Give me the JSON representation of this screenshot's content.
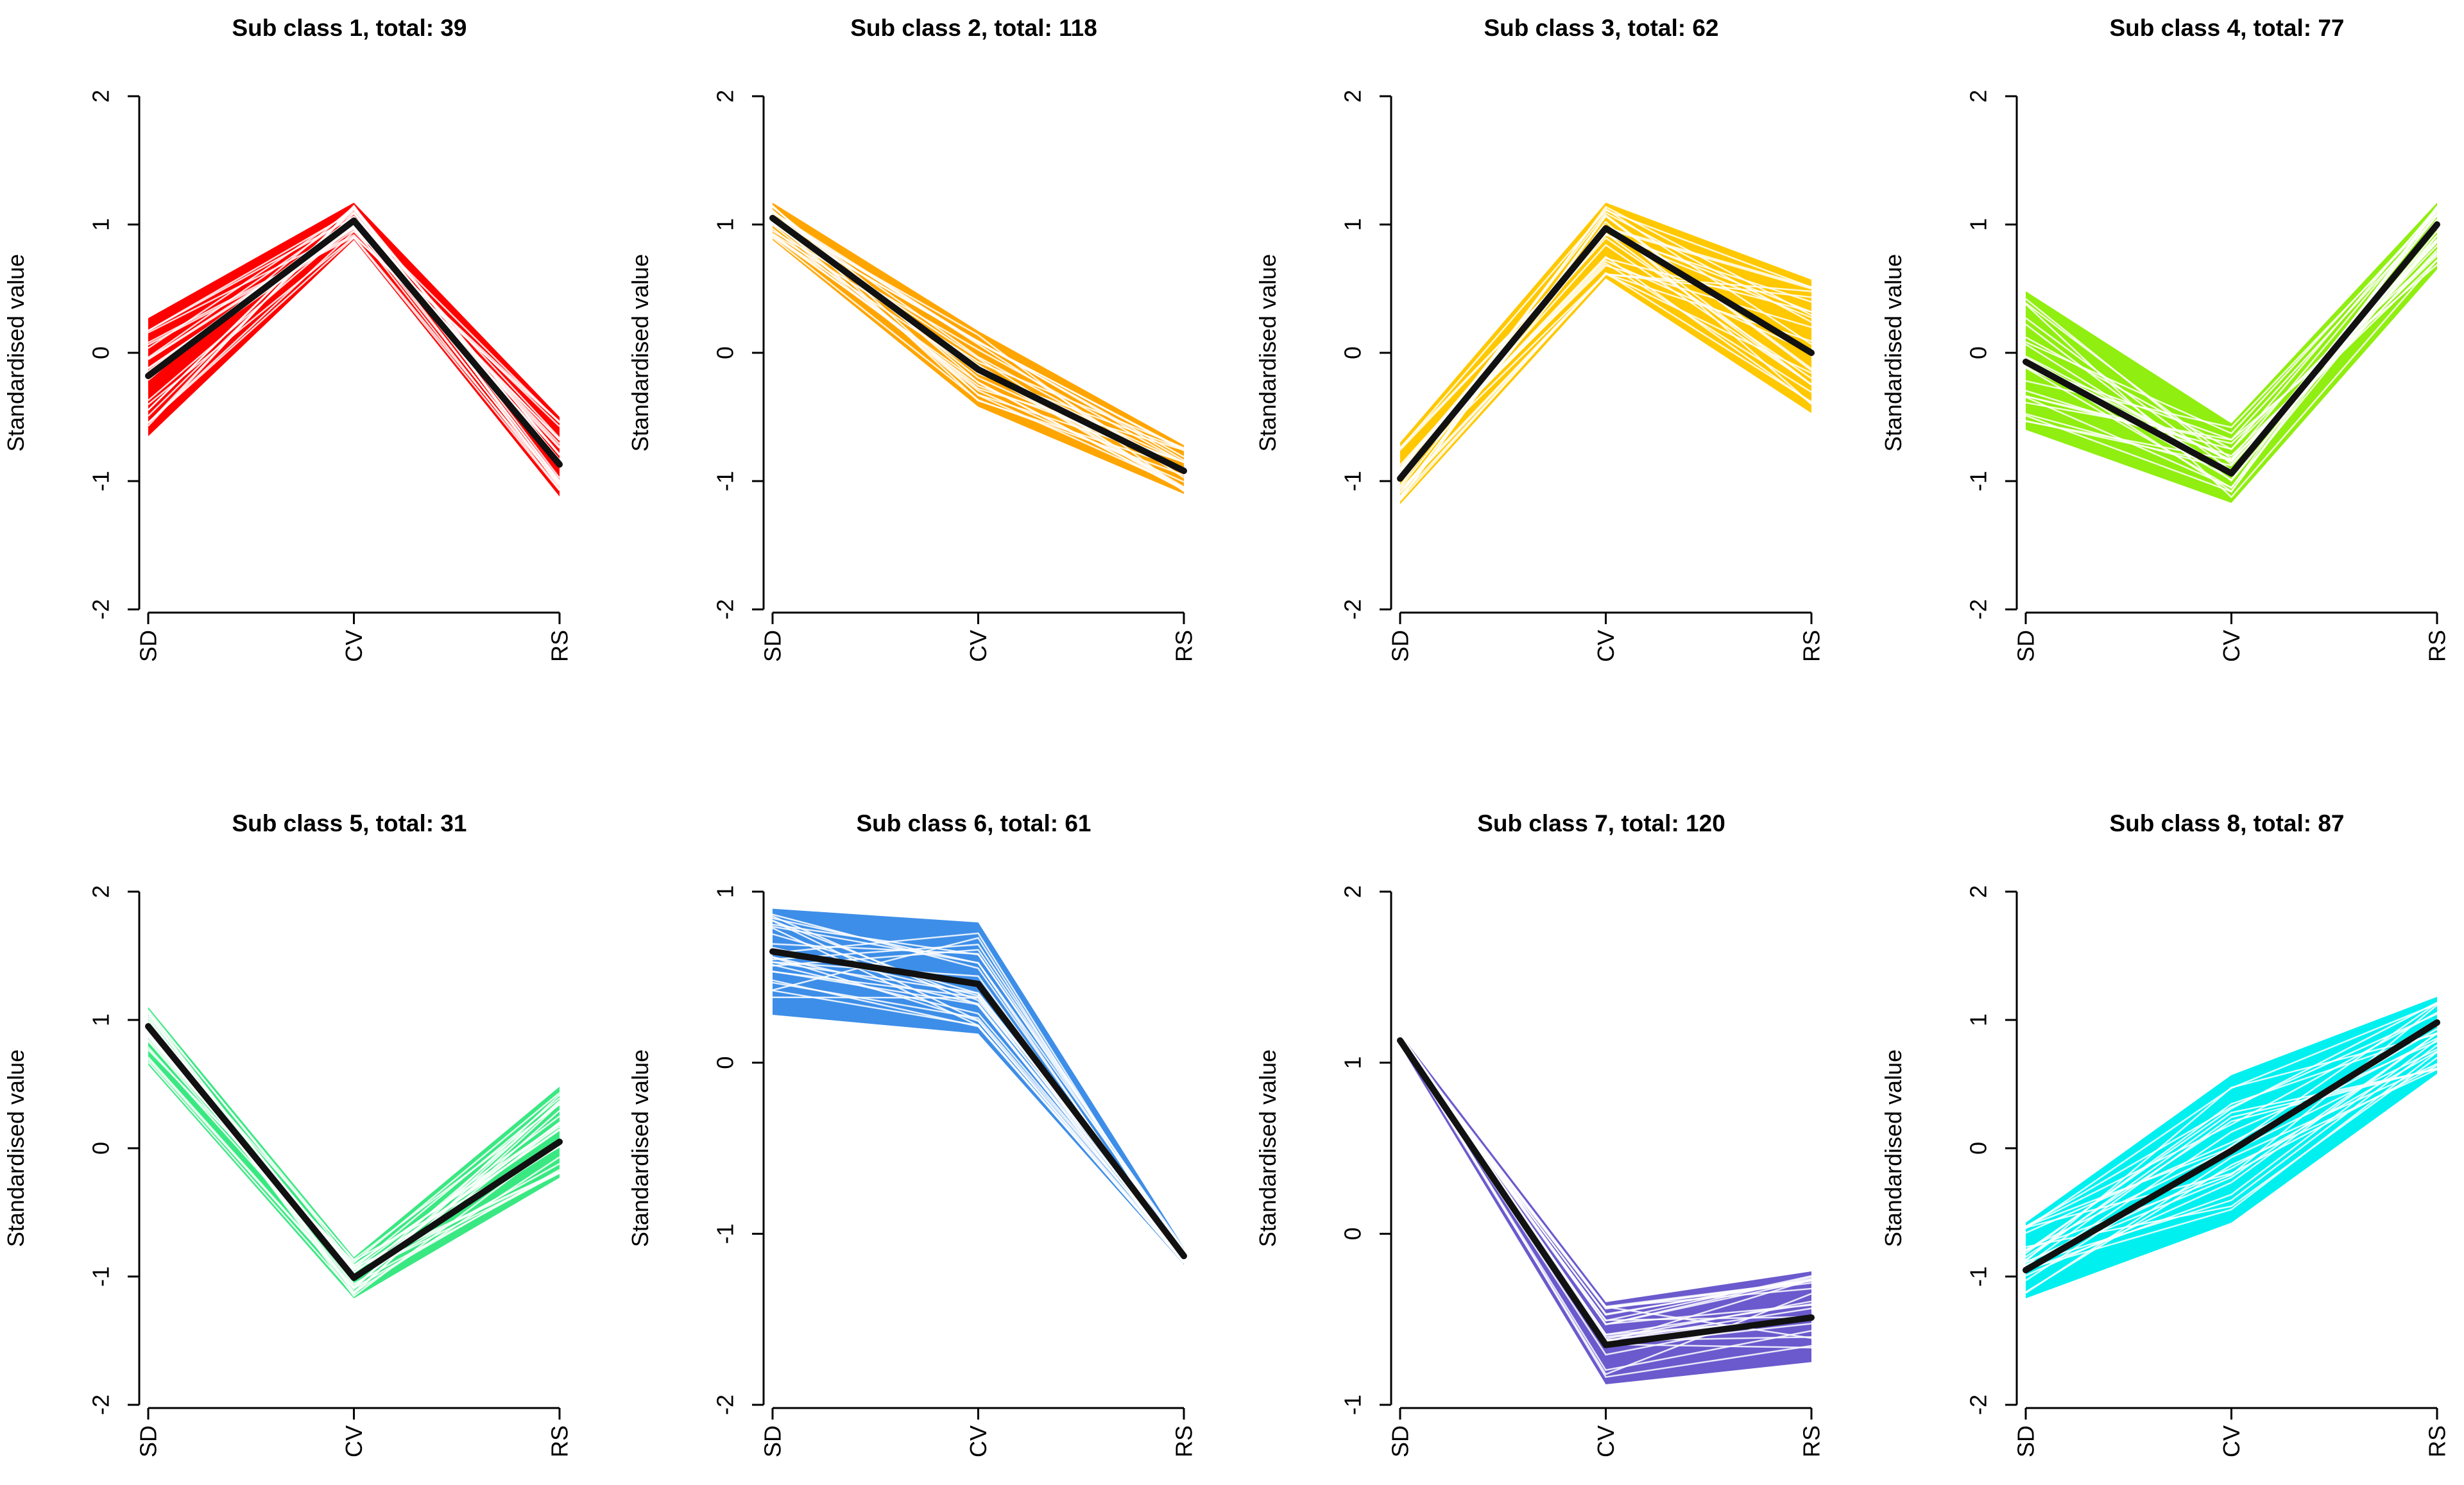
{
  "chart_data": [
    {
      "type": "line",
      "title": "Sub class 1, total: 39",
      "categories": [
        "SD",
        "CV",
        "RS"
      ],
      "ylabel": "Standardised value",
      "ylim": [
        -2,
        2
      ],
      "yticks": [
        -2,
        -1,
        0,
        1,
        2
      ],
      "color": "#ff0000",
      "band_min": [
        -0.65,
        0.88,
        -1.12
      ],
      "band_max": [
        0.27,
        1.17,
        -0.5
      ],
      "series": [
        {
          "name": "mean",
          "values": [
            -0.18,
            1.03,
            -0.87
          ]
        }
      ]
    },
    {
      "type": "line",
      "title": "Sub class 2, total: 118",
      "categories": [
        "SD",
        "CV",
        "RS"
      ],
      "ylabel": "Standardised value",
      "ylim": [
        -2,
        2
      ],
      "yticks": [
        -2,
        -1,
        0,
        1,
        2
      ],
      "color": "#ffa500",
      "band_min": [
        0.88,
        -0.42,
        -1.1
      ],
      "band_max": [
        1.17,
        0.17,
        -0.72
      ],
      "series": [
        {
          "name": "mean",
          "values": [
            1.05,
            -0.13,
            -0.92
          ]
        }
      ]
    },
    {
      "type": "line",
      "title": "Sub class 3, total: 62",
      "categories": [
        "SD",
        "CV",
        "RS"
      ],
      "ylabel": "Standardised value",
      "ylim": [
        -2,
        2
      ],
      "yticks": [
        -2,
        -1,
        0,
        1,
        2
      ],
      "color": "#ffc800",
      "band_min": [
        -1.18,
        0.58,
        -0.47
      ],
      "band_max": [
        -0.7,
        1.17,
        0.57
      ],
      "series": [
        {
          "name": "mean",
          "values": [
            -0.98,
            0.97,
            0.0
          ]
        }
      ]
    },
    {
      "type": "line",
      "title": "Sub class 4, total: 77",
      "categories": [
        "SD",
        "CV",
        "RS"
      ],
      "ylabel": "Standardised value",
      "ylim": [
        -2,
        2
      ],
      "yticks": [
        -2,
        -1,
        0,
        1,
        2
      ],
      "color": "#90ee10",
      "band_min": [
        -0.6,
        -1.17,
        0.65
      ],
      "band_max": [
        0.48,
        -0.55,
        1.17
      ],
      "series": [
        {
          "name": "mean",
          "values": [
            -0.07,
            -0.94,
            1.0
          ]
        }
      ]
    },
    {
      "type": "line",
      "title": "Sub class 5, total: 31",
      "categories": [
        "SD",
        "CV",
        "RS"
      ],
      "ylabel": "Standardised value",
      "ylim": [
        -2,
        2
      ],
      "yticks": [
        -2,
        -1,
        0,
        1,
        2
      ],
      "color": "#3ae882",
      "band_min": [
        0.65,
        -1.17,
        -0.23
      ],
      "band_max": [
        1.1,
        -0.85,
        0.48
      ],
      "series": [
        {
          "name": "mean",
          "values": [
            0.95,
            -1.01,
            0.05
          ]
        }
      ]
    },
    {
      "type": "line",
      "title": "Sub class 6, total: 61",
      "categories": [
        "SD",
        "CV",
        "RS"
      ],
      "ylabel": "Standardised value",
      "ylim": [
        -2,
        1
      ],
      "yticks": [
        -2,
        -1,
        0,
        1
      ],
      "color": "#3d8ee8",
      "band_min": [
        0.28,
        0.17,
        -1.18
      ],
      "band_max": [
        0.9,
        0.82,
        -1.08
      ],
      "series": [
        {
          "name": "mean",
          "values": [
            0.65,
            0.46,
            -1.13
          ]
        }
      ]
    },
    {
      "type": "line",
      "title": "Sub class 7, total: 120",
      "categories": [
        "SD",
        "CV",
        "RS"
      ],
      "ylabel": "Standardised value",
      "ylim": [
        -1,
        2
      ],
      "yticks": [
        -1,
        0,
        1,
        2
      ],
      "color": "#6a5acd",
      "band_min": [
        1.1,
        -0.88,
        -0.75
      ],
      "band_max": [
        1.17,
        -0.4,
        -0.22
      ],
      "series": [
        {
          "name": "mean",
          "values": [
            1.13,
            -0.65,
            -0.49
          ]
        }
      ]
    },
    {
      "type": "line",
      "title": "Sub class 8, total: 87",
      "categories": [
        "SD",
        "CV",
        "RS"
      ],
      "ylabel": "Standardised value",
      "ylim": [
        -2,
        2
      ],
      "yticks": [
        -2,
        -1,
        0,
        1,
        2
      ],
      "color": "#00f0f0",
      "band_min": [
        -1.17,
        -0.58,
        0.58
      ],
      "band_max": [
        -0.58,
        0.57,
        1.18
      ],
      "series": [
        {
          "name": "mean",
          "values": [
            -0.95,
            -0.02,
            0.98
          ]
        }
      ]
    }
  ]
}
